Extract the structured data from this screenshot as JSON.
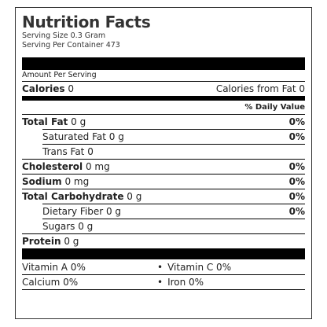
{
  "title": "Nutrition Facts",
  "serving_size": "Serving Size 0.3 Gram",
  "servings_per_container": "Serving Per Container 473",
  "amount_per_serving": "Amount Per Serving",
  "calories": {
    "label": "Calories",
    "value": "0"
  },
  "calories_from_fat": "Calories from Fat 0",
  "daily_value_header": "% Daily Value",
  "nutrients": [
    {
      "label": "Total Fat",
      "amount": "0 g",
      "pct": "0%"
    },
    {
      "label": "Saturated Fat 0 g",
      "pct": "0%"
    },
    {
      "label": "Trans Fat 0"
    },
    {
      "label": "Cholesterol",
      "amount": "0 mg",
      "pct": "0%"
    },
    {
      "label": "Sodium",
      "amount": "0 mg",
      "pct": "0%"
    },
    {
      "label": "Total Carbohydrate",
      "amount": "0 g",
      "pct": "0%"
    },
    {
      "label": "Dietary Fiber 0 g",
      "pct": "0%"
    },
    {
      "label": "Sugars 0 g"
    },
    {
      "label": "Protein",
      "amount": "0 g"
    }
  ],
  "vitamins": [
    {
      "left": "Vitamin A 0%",
      "right": "Vitamin C 0%"
    },
    {
      "left": "Calcium 0%",
      "right": "Iron 0%"
    }
  ],
  "bullet": "•"
}
